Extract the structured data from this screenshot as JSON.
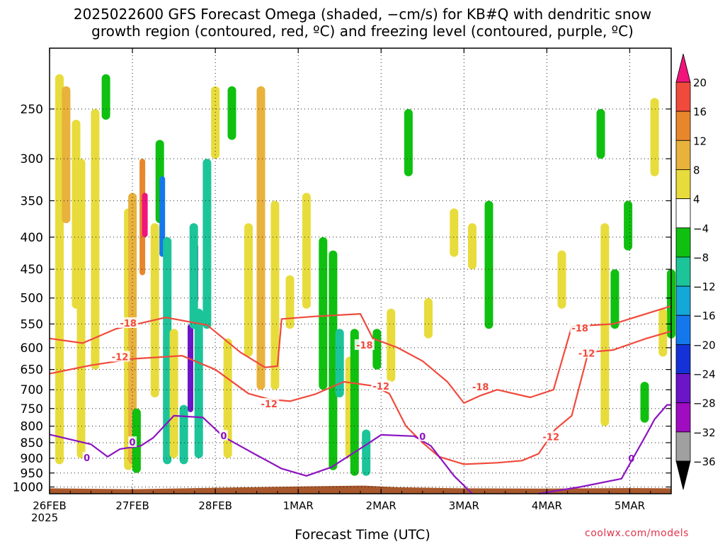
{
  "title": {
    "line1": "2025022600 GFS Forecast Omega (shaded, −cm/s) for KB#Q with dendritic snow",
    "line2": "growth region (contoured, red, ºC) and freezing level (contoured, purple, ºC)"
  },
  "credit": "coolwx.com/models",
  "colors": {
    "omega_ascent_4_8": "#e8dc3c",
    "omega_ascent_8_12": "#e8b23c",
    "omega_ascent_12_16": "#e8862c",
    "omega_ascent_16_20": "#f04a3c",
    "omega_ascent_20plus": "#f0147c",
    "omega_neutral": "#ffffff",
    "omega_descent_4_8": "#10c010",
    "omega_descent_8_12": "#1cc49a",
    "omega_descent_12_16": "#14a8d8",
    "omega_descent_16_20": "#1478ec",
    "omega_descent_20_24": "#1432d8",
    "omega_descent_24_28": "#6c14c8",
    "omega_descent_28_32": "#a00cc0",
    "omega_descent_32_36": "#a0a0a0",
    "omega_descent_36plus": "#000000",
    "dgz_contour": "#f04a3c",
    "freezing_contour": "#8c14c0",
    "ground": "#a8582c"
  },
  "chart_data": {
    "type": "heatmap",
    "xlabel": "Forecast Time (UTC)",
    "x_first_label_year": "2025",
    "x_tick_labels": [
      "26FEB",
      "27FEB",
      "28FEB",
      "1MAR",
      "2MAR",
      "3MAR",
      "4MAR",
      "5MAR"
    ],
    "x_range_days": [
      0,
      7.5
    ],
    "y_tick_labels": [
      "250",
      "300",
      "350",
      "400",
      "450",
      "500",
      "550",
      "600",
      "650",
      "700",
      "750",
      "800",
      "850",
      "900",
      "950",
      "1000"
    ],
    "y_unit": "hPa",
    "y_range_hpa": [
      200,
      1025
    ],
    "grid": "dotted",
    "colorbar_labels": [
      "20",
      "16",
      "12",
      "8",
      "4",
      "−4",
      "−8",
      "−12",
      "−16",
      "−20",
      "−24",
      "−28",
      "−32",
      "−36"
    ],
    "colorbar_position": "right",
    "omega_blobs": [
      {
        "t": 0.12,
        "p1": 220,
        "p2": 920,
        "v": 6
      },
      {
        "t": 0.2,
        "p1": 230,
        "p2": 380,
        "v": 10
      },
      {
        "t": 0.32,
        "p1": 260,
        "p2": 520,
        "v": 6
      },
      {
        "t": 0.38,
        "p1": 300,
        "p2": 900,
        "v": 6
      },
      {
        "t": 0.55,
        "p1": 250,
        "p2": 650,
        "v": 6
      },
      {
        "t": 0.68,
        "p1": 220,
        "p2": 260,
        "v": -6
      },
      {
        "t": 0.95,
        "p1": 360,
        "p2": 940,
        "v": 6
      },
      {
        "t": 1.0,
        "p1": 340,
        "p2": 920,
        "v": 10
      },
      {
        "t": 1.05,
        "p1": 750,
        "p2": 950,
        "v": -6
      },
      {
        "t": 1.12,
        "p1": 300,
        "p2": 460,
        "v": 14
      },
      {
        "t": 1.15,
        "p1": 340,
        "p2": 400,
        "v": 22
      },
      {
        "t": 1.27,
        "p1": 380,
        "p2": 720,
        "v": 6
      },
      {
        "t": 1.33,
        "p1": 280,
        "p2": 380,
        "v": -6
      },
      {
        "t": 1.36,
        "p1": 320,
        "p2": 430,
        "v": -16
      },
      {
        "t": 1.42,
        "p1": 400,
        "p2": 920,
        "v": -10
      },
      {
        "t": 1.5,
        "p1": 560,
        "p2": 900,
        "v": 6
      },
      {
        "t": 1.62,
        "p1": 740,
        "p2": 920,
        "v": -8
      },
      {
        "t": 1.7,
        "p1": 550,
        "p2": 760,
        "v": -24
      },
      {
        "t": 1.76,
        "p1": 410,
        "p2": 510,
        "v": -28
      },
      {
        "t": 1.74,
        "p1": 380,
        "p2": 560,
        "v": -10
      },
      {
        "t": 1.8,
        "p1": 520,
        "p2": 900,
        "v": -8
      },
      {
        "t": 1.9,
        "p1": 300,
        "p2": 560,
        "v": -8
      },
      {
        "t": 2.0,
        "p1": 230,
        "p2": 300,
        "v": 6
      },
      {
        "t": 2.2,
        "p1": 230,
        "p2": 280,
        "v": -6
      },
      {
        "t": 2.15,
        "p1": 580,
        "p2": 900,
        "v": 6
      },
      {
        "t": 2.4,
        "p1": 380,
        "p2": 620,
        "v": 6
      },
      {
        "t": 2.55,
        "p1": 230,
        "p2": 700,
        "v": 10
      },
      {
        "t": 2.72,
        "p1": 350,
        "p2": 700,
        "v": 6
      },
      {
        "t": 2.9,
        "p1": 460,
        "p2": 560,
        "v": 6
      },
      {
        "t": 3.1,
        "p1": 340,
        "p2": 520,
        "v": 6
      },
      {
        "t": 3.3,
        "p1": 400,
        "p2": 700,
        "v": -6
      },
      {
        "t": 3.42,
        "p1": 420,
        "p2": 940,
        "v": -6
      },
      {
        "t": 3.5,
        "p1": 560,
        "p2": 720,
        "v": -10
      },
      {
        "t": 3.62,
        "p1": 620,
        "p2": 900,
        "v": 6
      },
      {
        "t": 3.68,
        "p1": 560,
        "p2": 960,
        "v": -6
      },
      {
        "t": 3.82,
        "p1": 810,
        "p2": 960,
        "v": -8
      },
      {
        "t": 3.95,
        "p1": 560,
        "p2": 650,
        "v": -6
      },
      {
        "t": 4.12,
        "p1": 520,
        "p2": 680,
        "v": 6
      },
      {
        "t": 4.33,
        "p1": 250,
        "p2": 320,
        "v": -6
      },
      {
        "t": 4.57,
        "p1": 500,
        "p2": 580,
        "v": 6
      },
      {
        "t": 4.88,
        "p1": 360,
        "p2": 430,
        "v": 6
      },
      {
        "t": 5.3,
        "p1": 350,
        "p2": 560,
        "v": -6
      },
      {
        "t": 5.1,
        "p1": 380,
        "p2": 450,
        "v": 6
      },
      {
        "t": 6.18,
        "p1": 420,
        "p2": 520,
        "v": 6
      },
      {
        "t": 6.65,
        "p1": 250,
        "p2": 300,
        "v": -6
      },
      {
        "t": 6.7,
        "p1": 380,
        "p2": 800,
        "v": 6
      },
      {
        "t": 6.82,
        "p1": 450,
        "p2": 560,
        "v": -6
      },
      {
        "t": 6.98,
        "p1": 350,
        "p2": 420,
        "v": -6
      },
      {
        "t": 7.3,
        "p1": 240,
        "p2": 320,
        "v": 6
      },
      {
        "t": 7.5,
        "p1": 450,
        "p2": 580,
        "v": -6
      },
      {
        "t": 7.18,
        "p1": 680,
        "p2": 790,
        "v": -6
      },
      {
        "t": 7.4,
        "p1": 520,
        "p2": 620,
        "v": 6
      }
    ],
    "contours": [
      {
        "name": "-18",
        "color": "dgz_contour",
        "label_at": [
          [
            0.95,
            548
          ],
          [
            3.8,
            594
          ],
          [
            5.2,
            692
          ],
          [
            6.4,
            558
          ]
        ],
        "points": [
          [
            0,
            580
          ],
          [
            0.4,
            590
          ],
          [
            0.8,
            560
          ],
          [
            1.4,
            537
          ],
          [
            1.9,
            552
          ],
          [
            2.3,
            610
          ],
          [
            2.6,
            645
          ],
          [
            2.75,
            642
          ],
          [
            2.8,
            540
          ],
          [
            3.2,
            535
          ],
          [
            3.75,
            530
          ],
          [
            3.9,
            580
          ],
          [
            4.2,
            600
          ],
          [
            4.5,
            630
          ],
          [
            4.8,
            680
          ],
          [
            5.0,
            735
          ],
          [
            5.2,
            715
          ],
          [
            5.4,
            700
          ],
          [
            5.8,
            720
          ],
          [
            6.08,
            700
          ],
          [
            6.3,
            555
          ],
          [
            6.8,
            550
          ],
          [
            7.5,
            515
          ]
        ]
      },
      {
        "name": "-12",
        "color": "dgz_contour",
        "label_at": [
          [
            0.85,
            620
          ],
          [
            2.65,
            737
          ],
          [
            4.0,
            691
          ],
          [
            6.05,
            832
          ],
          [
            6.48,
            612
          ]
        ],
        "points": [
          [
            0,
            660
          ],
          [
            0.5,
            640
          ],
          [
            1.0,
            625
          ],
          [
            1.6,
            618
          ],
          [
            2.0,
            650
          ],
          [
            2.4,
            710
          ],
          [
            2.65,
            725
          ],
          [
            2.9,
            730
          ],
          [
            3.2,
            712
          ],
          [
            3.55,
            680
          ],
          [
            3.9,
            690
          ],
          [
            4.1,
            710
          ],
          [
            4.3,
            800
          ],
          [
            4.5,
            850
          ],
          [
            4.7,
            895
          ],
          [
            5.0,
            920
          ],
          [
            5.4,
            915
          ],
          [
            5.7,
            908
          ],
          [
            5.9,
            885
          ],
          [
            6.1,
            810
          ],
          [
            6.3,
            770
          ],
          [
            6.5,
            610
          ],
          [
            6.8,
            605
          ],
          [
            7.2,
            580
          ],
          [
            7.5,
            565
          ]
        ]
      },
      {
        "name": "0",
        "color": "freezing_contour",
        "label_at": [
          [
            0.45,
            898
          ],
          [
            1.0,
            848
          ],
          [
            2.1,
            828
          ],
          [
            4.5,
            830
          ],
          [
            7.02,
            900
          ]
        ],
        "points": [
          [
            0,
            825
          ],
          [
            0.5,
            855
          ],
          [
            0.7,
            895
          ],
          [
            0.85,
            870
          ],
          [
            1.1,
            860
          ],
          [
            1.25,
            835
          ],
          [
            1.5,
            770
          ],
          [
            1.85,
            775
          ],
          [
            2.1,
            832
          ],
          [
            2.5,
            890
          ],
          [
            2.8,
            935
          ],
          [
            3.1,
            960
          ],
          [
            3.4,
            930
          ],
          [
            3.8,
            860
          ],
          [
            4.0,
            826
          ],
          [
            4.4,
            830
          ],
          [
            4.6,
            860
          ],
          [
            4.88,
            960
          ],
          [
            5.1,
            1025
          ]
        ]
      },
      {
        "name": "0-east",
        "color": "freezing_contour",
        "label_at": [],
        "points": [
          [
            5.9,
            1025
          ],
          [
            6.4,
            1000
          ],
          [
            6.9,
            970
          ],
          [
            7.2,
            825
          ],
          [
            7.3,
            780
          ],
          [
            7.45,
            740
          ],
          [
            7.5,
            740
          ]
        ]
      }
    ],
    "ground": [
      [
        0,
        1005
      ],
      [
        1.0,
        1008
      ],
      [
        2.0,
        1003
      ],
      [
        3.0,
        998
      ],
      [
        3.8,
        995
      ],
      [
        4.2,
        1001
      ],
      [
        5.0,
        1005
      ],
      [
        6.0,
        1006
      ],
      [
        7.0,
        1004
      ],
      [
        7.5,
        1005
      ]
    ]
  }
}
